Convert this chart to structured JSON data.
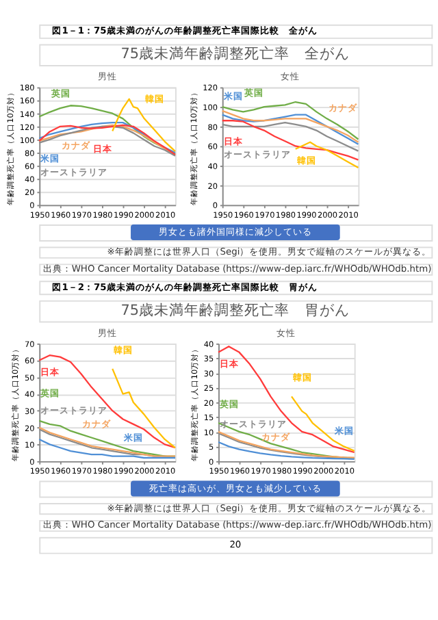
{
  "chart_data": [
    {
      "type": "line",
      "title": "男性",
      "ylabel": "年齢調整死亡率（人口10万対）",
      "xlim": [
        1950,
        2015
      ],
      "xticks": [
        1950,
        1960,
        1970,
        1980,
        1990,
        2000,
        2010
      ],
      "ylim": [
        0,
        180
      ],
      "yticks": [
        0,
        20,
        40,
        60,
        80,
        100,
        120,
        140,
        160,
        180
      ],
      "grid": "y",
      "legend": false,
      "annotations": [
        "図1－1：75歳未満のがんの年齢調整死亡率国際比較　全がん",
        "75歳未満年齢調整死亡率　全がん",
        "男女とも諸外国同様に減少している"
      ],
      "x": [
        1950,
        1955,
        1960,
        1965,
        1970,
        1975,
        1980,
        1985,
        1990,
        1995,
        2000,
        2005,
        2010,
        2015
      ],
      "series": [
        {
          "name": "英国",
          "color": "#70ad47",
          "values": [
            135,
            142,
            148,
            152,
            151,
            148,
            144,
            140,
            132,
            118,
            105,
            95,
            87,
            78
          ]
        },
        {
          "name": "米国",
          "color": "#4f8fd6",
          "values": [
            102,
            108,
            112,
            116,
            120,
            123,
            125,
            126,
            126,
            118,
            108,
            97,
            88,
            80
          ]
        },
        {
          "name": "カナダ",
          "color": "#f4a460",
          "values": [
            98,
            103,
            108,
            110,
            112,
            116,
            120,
            122,
            120,
            114,
            106,
            96,
            86,
            76
          ]
        },
        {
          "name": "オーストラリア",
          "color": "#8c8c8c",
          "values": [
            95,
            100,
            106,
            110,
            114,
            118,
            120,
            120,
            118,
            110,
            100,
            90,
            84,
            75
          ]
        },
        {
          "name": "日本",
          "color": "#ff3b3b",
          "values": [
            98,
            112,
            120,
            121,
            118,
            117,
            118,
            120,
            122,
            120,
            110,
            98,
            88,
            77
          ]
        },
        {
          "name": "韓国",
          "color": "#ffc000",
          "x": [
            1985,
            1988,
            1990,
            1993,
            1995,
            1997,
            2000,
            2005,
            2010,
            2015
          ],
          "values": [
            113,
            135,
            148,
            162,
            150,
            148,
            133,
            115,
            97,
            82
          ]
        }
      ]
    },
    {
      "type": "line",
      "title": "女性",
      "ylabel": "年齢調整死亡率（人口10万対）",
      "xlim": [
        1950,
        2015
      ],
      "xticks": [
        1950,
        1960,
        1970,
        1980,
        1990,
        2000,
        2010
      ],
      "ylim": [
        0,
        120
      ],
      "yticks": [
        0,
        20,
        40,
        60,
        80,
        100,
        120
      ],
      "grid": "y",
      "legend": false,
      "annotations": [
        "※年齢調整には世界人口（Segi）を使用。男女で縦軸のスケールが異なる。",
        "出典：WHO Cancer Mortality Database (https://www-dep.iarc.fr/WHOdb/WHOdb.htm)"
      ],
      "x": [
        1950,
        1955,
        1960,
        1965,
        1970,
        1975,
        1980,
        1985,
        1990,
        1995,
        2000,
        2005,
        2010,
        2015
      ],
      "series": [
        {
          "name": "英国",
          "color": "#70ad47",
          "values": [
            100,
            97,
            95,
            97,
            100,
            101,
            102,
            105,
            103,
            95,
            88,
            82,
            75,
            67
          ]
        },
        {
          "name": "米国",
          "color": "#4f8fd6",
          "values": [
            92,
            88,
            86,
            85,
            86,
            88,
            90,
            92,
            92,
            86,
            80,
            74,
            68,
            62
          ]
        },
        {
          "name": "カナダ",
          "color": "#f4a460",
          "values": [
            96,
            92,
            88,
            86,
            86,
            87,
            88,
            88,
            88,
            84,
            80,
            76,
            71,
            64
          ]
        },
        {
          "name": "オーストラリア",
          "color": "#8c8c8c",
          "values": [
            82,
            80,
            80,
            80,
            80,
            82,
            84,
            82,
            80,
            76,
            70,
            65,
            60,
            55
          ]
        },
        {
          "name": "日本",
          "color": "#ff3b3b",
          "values": [
            86,
            86,
            85,
            80,
            76,
            70,
            65,
            60,
            58,
            57,
            56,
            53,
            50,
            46
          ]
        },
        {
          "name": "韓国",
          "color": "#ffc000",
          "x": [
            1985,
            1988,
            1992,
            1995,
            2000,
            2005,
            2010,
            2015
          ],
          "values": [
            57,
            60,
            64,
            60,
            56,
            50,
            44,
            38
          ]
        }
      ]
    },
    {
      "type": "line",
      "title": "男性",
      "ylabel": "年齢調整死亡率（人口10万対）",
      "xlim": [
        1950,
        2015
      ],
      "xticks": [
        1950,
        1960,
        1970,
        1980,
        1990,
        2000,
        2010
      ],
      "ylim": [
        0,
        70
      ],
      "yticks": [
        0,
        10,
        20,
        30,
        40,
        50,
        60,
        70
      ],
      "grid": "y",
      "legend": false,
      "annotations": [
        "図1－2：75歳未満のがんの年齢調整死亡率国際比較　胃がん",
        "75歳未満年齢調整死亡率　胃がん",
        "死亡率は高いが、男女とも減少している"
      ],
      "x": [
        1950,
        1955,
        1960,
        1965,
        1970,
        1975,
        1980,
        1985,
        1990,
        1995,
        2000,
        2005,
        2010,
        2015
      ],
      "series": [
        {
          "name": "日本",
          "color": "#ff3b3b",
          "values": [
            60,
            63,
            62,
            59,
            52,
            44,
            37,
            30,
            25,
            22,
            19,
            14,
            10,
            8
          ]
        },
        {
          "name": "韓国",
          "color": "#ffc000",
          "x": [
            1985,
            1990,
            1993,
            1995,
            2000,
            2005,
            2010,
            2015
          ],
          "values": [
            55,
            40,
            41,
            35,
            28,
            20,
            13,
            8
          ]
        },
        {
          "name": "オーストラリア",
          "color": "#8c8c8c",
          "values": [
            19,
            16,
            14,
            12,
            10,
            8,
            7,
            6,
            5,
            4,
            4,
            3,
            3,
            2
          ]
        },
        {
          "name": "英国",
          "color": "#70ad47",
          "values": [
            24,
            22,
            21,
            18,
            16,
            14,
            12,
            10,
            8,
            6,
            5,
            4,
            3,
            3
          ]
        },
        {
          "name": "カナダ",
          "color": "#f4a460",
          "values": [
            20,
            17,
            15,
            13,
            11,
            9,
            8,
            7,
            6,
            5,
            4,
            3,
            3,
            3
          ]
        },
        {
          "name": "米国",
          "color": "#4f8fd6",
          "values": [
            13,
            10,
            8,
            6,
            5,
            4,
            4,
            3,
            3,
            3,
            2,
            2,
            2,
            2
          ]
        }
      ]
    },
    {
      "type": "line",
      "title": "女性",
      "ylabel": "年齢調整死亡率（人口10万対）",
      "xlim": [
        1950,
        2015
      ],
      "xticks": [
        1950,
        1960,
        1970,
        1980,
        1990,
        2000,
        2010
      ],
      "ylim": [
        0,
        40
      ],
      "yticks": [
        0,
        5,
        10,
        15,
        20,
        25,
        30,
        35,
        40
      ],
      "grid": "y",
      "legend": false,
      "annotations": [
        "※年齢調整には世界人口（Segi）を使用。男女で縦軸のスケールが異なる。",
        "出典：WHO Cancer Mortality Database (https://www-dep.iarc.fr/WHOdb/WHOdb.htm)",
        "20"
      ],
      "x": [
        1950,
        1955,
        1960,
        1965,
        1970,
        1975,
        1980,
        1985,
        1990,
        1995,
        2000,
        2005,
        2010,
        2015
      ],
      "series": [
        {
          "name": "日本",
          "color": "#ff3b3b",
          "values": [
            37,
            39,
            37,
            33,
            28,
            22,
            17,
            13,
            10,
            9,
            7,
            5,
            4,
            3
          ]
        },
        {
          "name": "韓国",
          "color": "#ffc000",
          "x": [
            1985,
            1990,
            1992,
            1995,
            2000,
            2005,
            2010,
            2015
          ],
          "values": [
            22,
            17,
            16,
            13,
            10,
            7,
            5,
            3.5
          ]
        },
        {
          "name": "オーストラリア",
          "color": "#8c8c8c",
          "values": [
            9.5,
            8,
            6.5,
            5.5,
            4.5,
            3.8,
            3.2,
            2.7,
            2.2,
            1.8,
            1.5,
            1.3,
            1.2,
            1
          ]
        },
        {
          "name": "英国",
          "color": "#70ad47",
          "values": [
            13,
            11.5,
            10,
            9,
            7.5,
            6,
            5,
            4,
            3,
            2.5,
            2,
            1.5,
            1.2,
            1
          ]
        },
        {
          "name": "カナダ",
          "color": "#f4a460",
          "values": [
            10,
            8.5,
            7,
            6,
            5,
            4,
            3.5,
            3,
            2.5,
            2,
            1.7,
            1.5,
            1.3,
            1.2
          ]
        },
        {
          "name": "米国",
          "color": "#4f8fd6",
          "values": [
            6.5,
            5,
            4,
            3.3,
            2.7,
            2.2,
            1.8,
            1.5,
            1.3,
            1.1,
            1,
            0.9,
            0.8,
            0.7
          ]
        }
      ]
    }
  ]
}
